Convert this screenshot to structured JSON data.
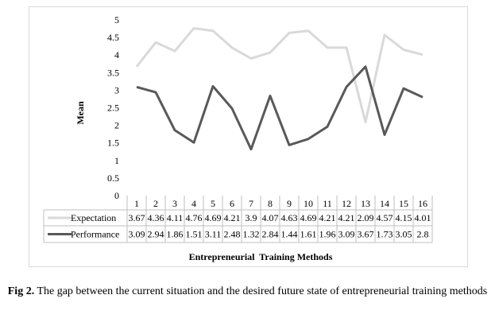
{
  "chart_data": {
    "type": "line",
    "categories": [
      "1",
      "2",
      "3",
      "4",
      "5",
      "6",
      "7",
      "8",
      "9",
      "10",
      "11",
      "12",
      "13",
      "14",
      "15",
      "16"
    ],
    "series": [
      {
        "name": "Expectation",
        "color": "#d9d9d9",
        "values": [
          3.67,
          4.36,
          4.11,
          4.76,
          4.69,
          4.21,
          3.9,
          4.07,
          4.63,
          4.69,
          4.21,
          4.21,
          2.09,
          4.57,
          4.15,
          4.01
        ]
      },
      {
        "name": "Performance",
        "color": "#595959",
        "values": [
          3.09,
          2.94,
          1.86,
          1.51,
          3.11,
          2.48,
          1.32,
          2.84,
          1.44,
          1.61,
          1.96,
          3.09,
          3.67,
          1.73,
          3.05,
          2.8
        ]
      }
    ],
    "table_labels": {
      "Expectation": [
        "3.67",
        "4.36",
        "4.11",
        "4.76",
        "4.69",
        "4.21",
        "3.9",
        "4.07",
        "4.63",
        "4.69",
        "4.21",
        "4.21",
        "2.09",
        "4.57",
        "4.15",
        "4.01"
      ],
      "Performance": [
        "3.09",
        "2.94",
        "1.86",
        "1.51",
        "3.11",
        "2.48",
        "1.32",
        "2.84",
        "1.44",
        "1.61",
        "1.96",
        "3.09",
        "3.67",
        "1.73",
        "3.05",
        "2.8"
      ]
    },
    "y_ticks": [
      "0",
      "0.5",
      "1",
      "1.5",
      "2",
      "2.5",
      "3",
      "3.5",
      "4",
      "4.5",
      "5"
    ],
    "ylim": [
      0,
      5
    ],
    "ylabel": "Mean",
    "xlabel": "Entrepreneurial  Training Methods",
    "grid": false,
    "legend": "data table below chart"
  },
  "caption": {
    "label": "Fig 2.",
    "text": " The gap between the current situation and the desired future state of entrepreneurial training methods"
  }
}
